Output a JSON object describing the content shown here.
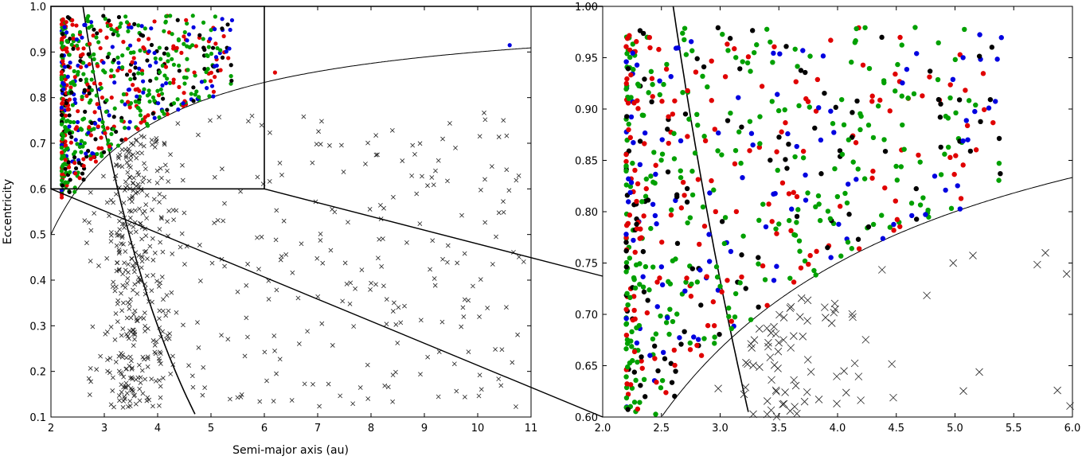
{
  "chart_data": [
    {
      "type": "scatter",
      "panel": "left",
      "xlabel": "Semi-major axis (au)",
      "ylabel": "Eccentricity",
      "xlim": [
        2,
        11
      ],
      "ylim": [
        0.1,
        1.0
      ],
      "x_ticks": [
        "2",
        "3",
        "4",
        "5",
        "6",
        "7",
        "8",
        "9",
        "10",
        "11"
      ],
      "y_ticks": [
        "0.1",
        "0.2",
        "0.3",
        "0.4",
        "0.5",
        "0.6",
        "0.7",
        "0.8",
        "0.9",
        "1.0"
      ],
      "zoom_box": {
        "x": [
          2,
          6
        ],
        "y": [
          0.6,
          1.0
        ]
      },
      "curves": [
        "perihelion = 1.0 au (q = a(1 - e))",
        "aphelion = 5.2 au (Q = a(1 + e))"
      ],
      "series": [
        {
          "marker": "x",
          "color": "#000000",
          "description_count": 700,
          "region": "below q-curve, a 2.5–11"
        },
        {
          "marker": "dot",
          "color": "#00a000",
          "region": "a 2–5, e 0.58–0.98"
        },
        {
          "marker": "dot",
          "color": "#e00000",
          "region": "a 2.3–6.3, e 0.56–0.97"
        },
        {
          "marker": "dot",
          "color": "#0000e0",
          "region": "a 2.2–10.6, e 0.63–0.95"
        },
        {
          "marker": "dot",
          "color": "#000000",
          "region": "a 2.4–5.4, e 0.62–0.98"
        }
      ]
    },
    {
      "type": "scatter",
      "panel": "right",
      "xlabel": "",
      "ylabel": "",
      "xlim": [
        2.0,
        6.0
      ],
      "ylim": [
        0.6,
        1.0
      ],
      "x_ticks": [
        "2.0",
        "2.5",
        "3.0",
        "3.5",
        "4.0",
        "4.5",
        "5.0",
        "5.5",
        "6.0"
      ],
      "y_ticks": [
        "0.60",
        "0.65",
        "0.70",
        "0.75",
        "0.80",
        "0.85",
        "0.90",
        "0.95",
        "1.00"
      ],
      "curves": [
        "perihelion = 1.0 au (q = a(1 - e))",
        "aphelion = 5.2 au (Q = a(1 + e))"
      ]
    }
  ],
  "colors": {
    "green": "#00a000",
    "red": "#e00000",
    "blue": "#0000e0",
    "black": "#000000"
  }
}
